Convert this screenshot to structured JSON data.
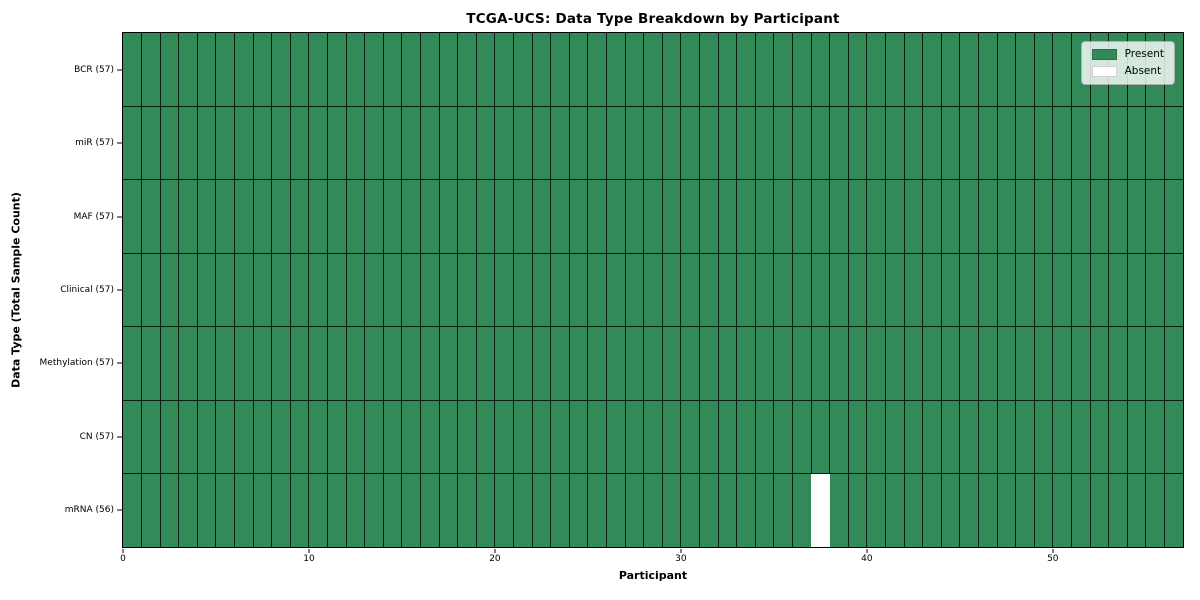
{
  "chart_data": {
    "type": "heatmap",
    "title": "TCGA-UCS: Data Type Breakdown by Participant",
    "xlabel": "Participant",
    "ylabel": "Data Type (Total Sample Count)",
    "n_participants": 57,
    "xlim": [
      0,
      57
    ],
    "xticks": [
      0,
      10,
      20,
      30,
      40,
      50
    ],
    "grid": true,
    "rows": [
      {
        "label": "BCR (57)",
        "present_count": 57,
        "absent_participants": []
      },
      {
        "label": "miR (57)",
        "present_count": 57,
        "absent_participants": []
      },
      {
        "label": "MAF (57)",
        "present_count": 57,
        "absent_participants": []
      },
      {
        "label": "Clinical (57)",
        "present_count": 57,
        "absent_participants": []
      },
      {
        "label": "Methylation (57)",
        "present_count": 57,
        "absent_participants": []
      },
      {
        "label": "CN (57)",
        "present_count": 57,
        "absent_participants": []
      },
      {
        "label": "mRNA (56)",
        "present_count": 56,
        "absent_participants": [
          37
        ]
      }
    ],
    "legend": {
      "position": "upper right",
      "entries": [
        {
          "label": "Present",
          "color": "#318a58"
        },
        {
          "label": "Absent",
          "color": "#ffffff"
        }
      ]
    },
    "colors": {
      "present": "#318a58",
      "absent": "#ffffff",
      "cell_edge": "#000000",
      "background": "#ffffff"
    }
  }
}
